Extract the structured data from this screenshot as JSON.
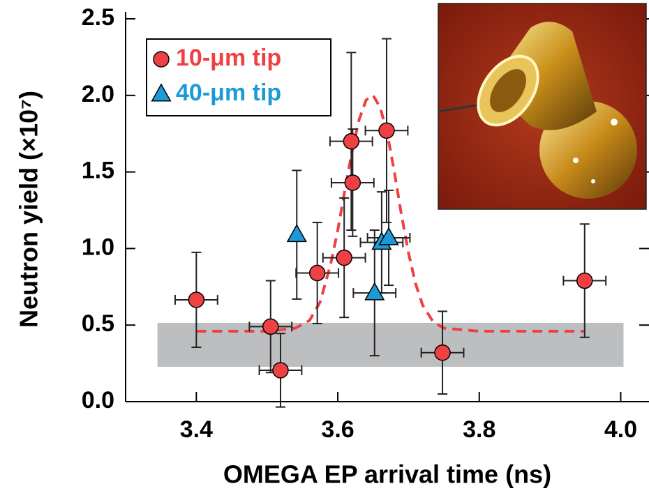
{
  "chart_data": {
    "type": "scatter",
    "xlabel": "OMEGA EP arrival time (ns)",
    "ylabel": "Neutron yield (×10⁷)",
    "xlim": [
      3.3,
      4.04
    ],
    "ylim": [
      0,
      2.5
    ],
    "xticks": [
      3.4,
      3.6,
      3.8,
      {
        "value": 4.0,
        "label": "4.0"
      }
    ],
    "yticks": [
      {
        "value": 0,
        "label": "0.0"
      },
      0.5,
      {
        "value": 1,
        "label": "1.0"
      },
      1.5,
      {
        "value": 2,
        "label": "2.0"
      },
      2.5
    ],
    "band": {
      "color": "#bcbec0",
      "x": [
        3.345,
        4.004
      ],
      "y": [
        0.228,
        0.515
      ]
    },
    "fit": {
      "color": "#ef4044",
      "x": [
        3.4,
        3.5,
        3.54,
        3.56,
        3.575,
        3.59,
        3.6,
        3.61,
        3.62,
        3.63,
        3.64,
        3.65,
        3.66,
        3.67,
        3.68,
        3.69,
        3.7,
        3.71,
        3.72,
        3.735,
        3.75,
        3.8,
        3.95
      ],
      "values": [
        0.46,
        0.46,
        0.48,
        0.53,
        0.65,
        0.9,
        1.12,
        1.38,
        1.63,
        1.84,
        1.97,
        2.0,
        1.92,
        1.75,
        1.5,
        1.22,
        0.97,
        0.77,
        0.63,
        0.52,
        0.48,
        0.46,
        0.46
      ]
    },
    "legend": "upper left",
    "series": [
      {
        "name": "10-μm tip",
        "color": "#ef4044",
        "marker": "circle",
        "x": [
          3.4,
          3.505,
          3.519,
          3.571,
          3.609,
          3.619,
          3.621,
          3.669,
          3.748,
          3.949
        ],
        "values": [
          0.665,
          0.49,
          0.205,
          0.84,
          0.94,
          1.7,
          1.43,
          1.77,
          0.32,
          0.79
        ],
        "xerr": [
          0.03,
          0.03,
          0.03,
          0.03,
          0.03,
          0.03,
          0.03,
          0.03,
          0.03,
          0.03
        ],
        "yerr": [
          0.31,
          0.3,
          0.24,
          0.33,
          0.39,
          0.58,
          0.35,
          0.6,
          0.27,
          0.37
        ]
      },
      {
        "name": "40-μm tip",
        "color": "#1c9ad6",
        "marker": "triangle",
        "x": [
          3.542,
          3.652,
          3.662,
          3.672
        ],
        "values": [
          1.09,
          0.71,
          1.04,
          1.07
        ],
        "xerr": [
          0.0,
          0.03,
          0.03,
          0.03
        ],
        "yerr": [
          0.42,
          0.41,
          0.33,
          0.31
        ]
      }
    ]
  }
}
